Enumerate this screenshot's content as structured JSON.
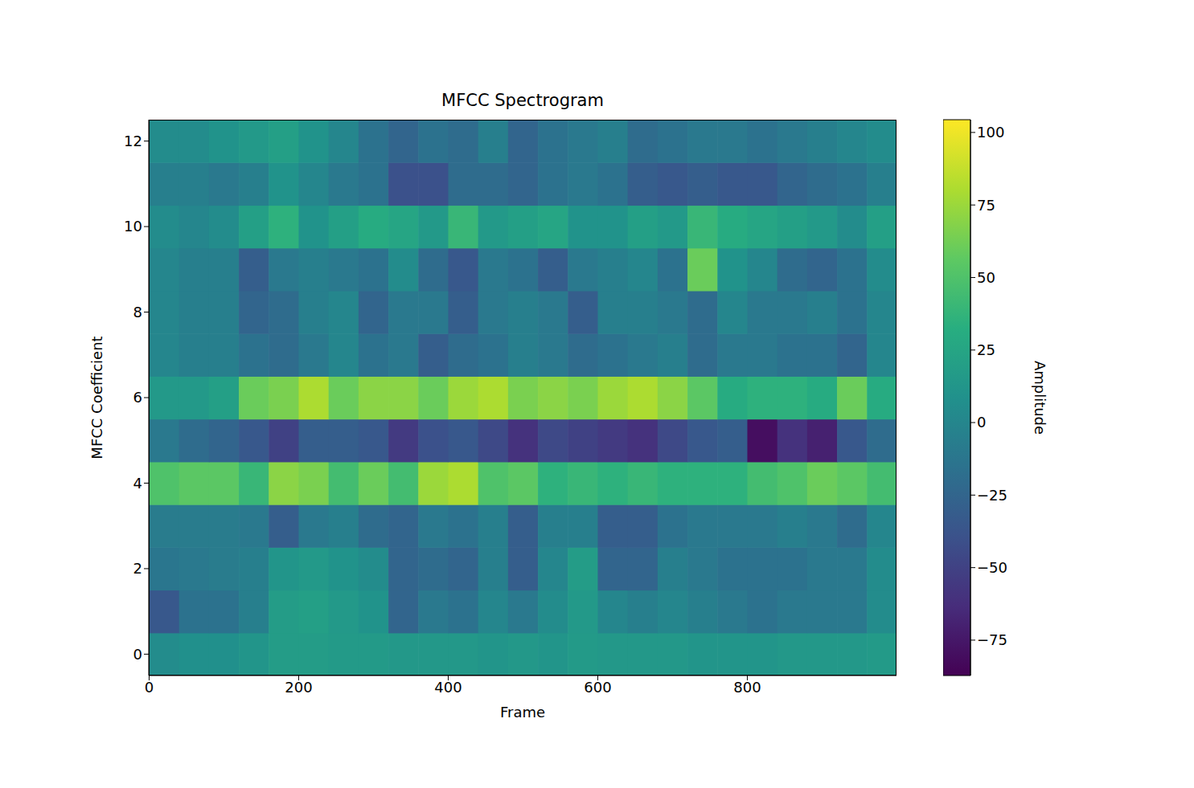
{
  "chart_data": {
    "type": "heatmap",
    "title": "MFCC Spectrogram",
    "x_label": "Frame",
    "y_label": "MFCC Coefficient",
    "color": "viridis",
    "x": [
      20,
      60,
      100,
      140,
      180,
      220,
      260,
      300,
      340,
      380,
      420,
      460,
      500,
      540,
      580,
      620,
      660,
      700,
      740,
      780,
      820,
      860,
      900,
      940,
      980
    ],
    "y": [
      0,
      1,
      2,
      3,
      4,
      5,
      6,
      7,
      8,
      9,
      10,
      11,
      12
    ],
    "cells": [
      [
        5,
        8,
        8,
        12,
        18,
        18,
        16,
        16,
        14,
        14,
        14,
        12,
        14,
        12,
        16,
        14,
        14,
        14,
        12,
        12,
        12,
        14,
        14,
        14,
        16
      ],
      [
        -35,
        -15,
        -15,
        -5,
        18,
        20,
        15,
        10,
        -25,
        -10,
        -15,
        0,
        -10,
        5,
        15,
        0,
        -5,
        0,
        -5,
        -10,
        -15,
        -10,
        -10,
        -10,
        5
      ],
      [
        -12,
        -10,
        -8,
        -5,
        12,
        15,
        10,
        5,
        -25,
        -20,
        -25,
        -5,
        -30,
        0,
        18,
        -25,
        -25,
        -5,
        -10,
        -15,
        -15,
        -15,
        -10,
        -10,
        5
      ],
      [
        -8,
        -8,
        -8,
        -10,
        -30,
        -10,
        -5,
        -20,
        -25,
        -10,
        -15,
        -5,
        -30,
        -5,
        -5,
        -30,
        -30,
        -15,
        -10,
        -10,
        -10,
        -5,
        -10,
        -20,
        0
      ],
      [
        50,
        55,
        55,
        40,
        70,
        65,
        45,
        60,
        45,
        75,
        80,
        50,
        55,
        35,
        40,
        35,
        40,
        35,
        35,
        35,
        45,
        50,
        60,
        55,
        45
      ],
      [
        -10,
        -20,
        -25,
        -35,
        -50,
        -30,
        -30,
        -35,
        -55,
        -40,
        -35,
        -45,
        -60,
        -45,
        -50,
        -55,
        -60,
        -45,
        -35,
        -30,
        -80,
        -60,
        -70,
        -35,
        -20
      ],
      [
        15,
        15,
        20,
        60,
        65,
        80,
        60,
        70,
        70,
        60,
        75,
        80,
        65,
        70,
        65,
        75,
        80,
        70,
        55,
        30,
        35,
        35,
        30,
        60,
        30
      ],
      [
        0,
        -5,
        -5,
        -15,
        -20,
        -10,
        0,
        -15,
        -10,
        -30,
        -20,
        -15,
        -5,
        -10,
        -20,
        -15,
        -10,
        -5,
        -20,
        -10,
        -10,
        -15,
        -15,
        -25,
        0
      ],
      [
        0,
        -5,
        -5,
        -25,
        -20,
        -5,
        0,
        -25,
        -10,
        -10,
        -30,
        -10,
        -5,
        -10,
        -30,
        -5,
        -5,
        -10,
        -20,
        0,
        -10,
        -10,
        -5,
        -15,
        0
      ],
      [
        0,
        -5,
        -5,
        -30,
        -10,
        -5,
        -10,
        -15,
        5,
        -20,
        -35,
        -10,
        -15,
        -30,
        -10,
        -5,
        0,
        -15,
        60,
        10,
        0,
        -20,
        -25,
        -15,
        5
      ],
      [
        5,
        0,
        5,
        20,
        35,
        10,
        20,
        30,
        25,
        15,
        40,
        15,
        20,
        25,
        10,
        10,
        20,
        15,
        40,
        30,
        25,
        20,
        15,
        5,
        20
      ],
      [
        -5,
        -5,
        -10,
        -5,
        10,
        0,
        -10,
        -15,
        -40,
        -40,
        -20,
        -20,
        -25,
        -15,
        -10,
        -15,
        -30,
        -35,
        -30,
        -35,
        -35,
        -25,
        -20,
        -15,
        -5
      ],
      [
        5,
        5,
        10,
        15,
        20,
        10,
        0,
        -15,
        -25,
        -15,
        -20,
        -5,
        -25,
        -15,
        -10,
        -5,
        -20,
        -15,
        -10,
        -10,
        -15,
        -10,
        -5,
        0,
        5
      ]
    ],
    "xlim": [
      -0.5,
      999.5
    ],
    "ylim": [
      -0.5,
      12.5
    ],
    "xticks": [
      0,
      200,
      400,
      600,
      800
    ],
    "yticks": [
      0,
      2,
      4,
      6,
      8,
      10,
      12
    ],
    "colorbar_label": "Amplitude",
    "colorbar_range": [
      -87.2,
      104.4
    ],
    "colorbar_ticks": [
      {
        "value": -75,
        "label": "−75"
      },
      {
        "value": -50,
        "label": "−50"
      },
      {
        "value": -25,
        "label": "−25"
      },
      0,
      25,
      50,
      75,
      100
    ]
  }
}
